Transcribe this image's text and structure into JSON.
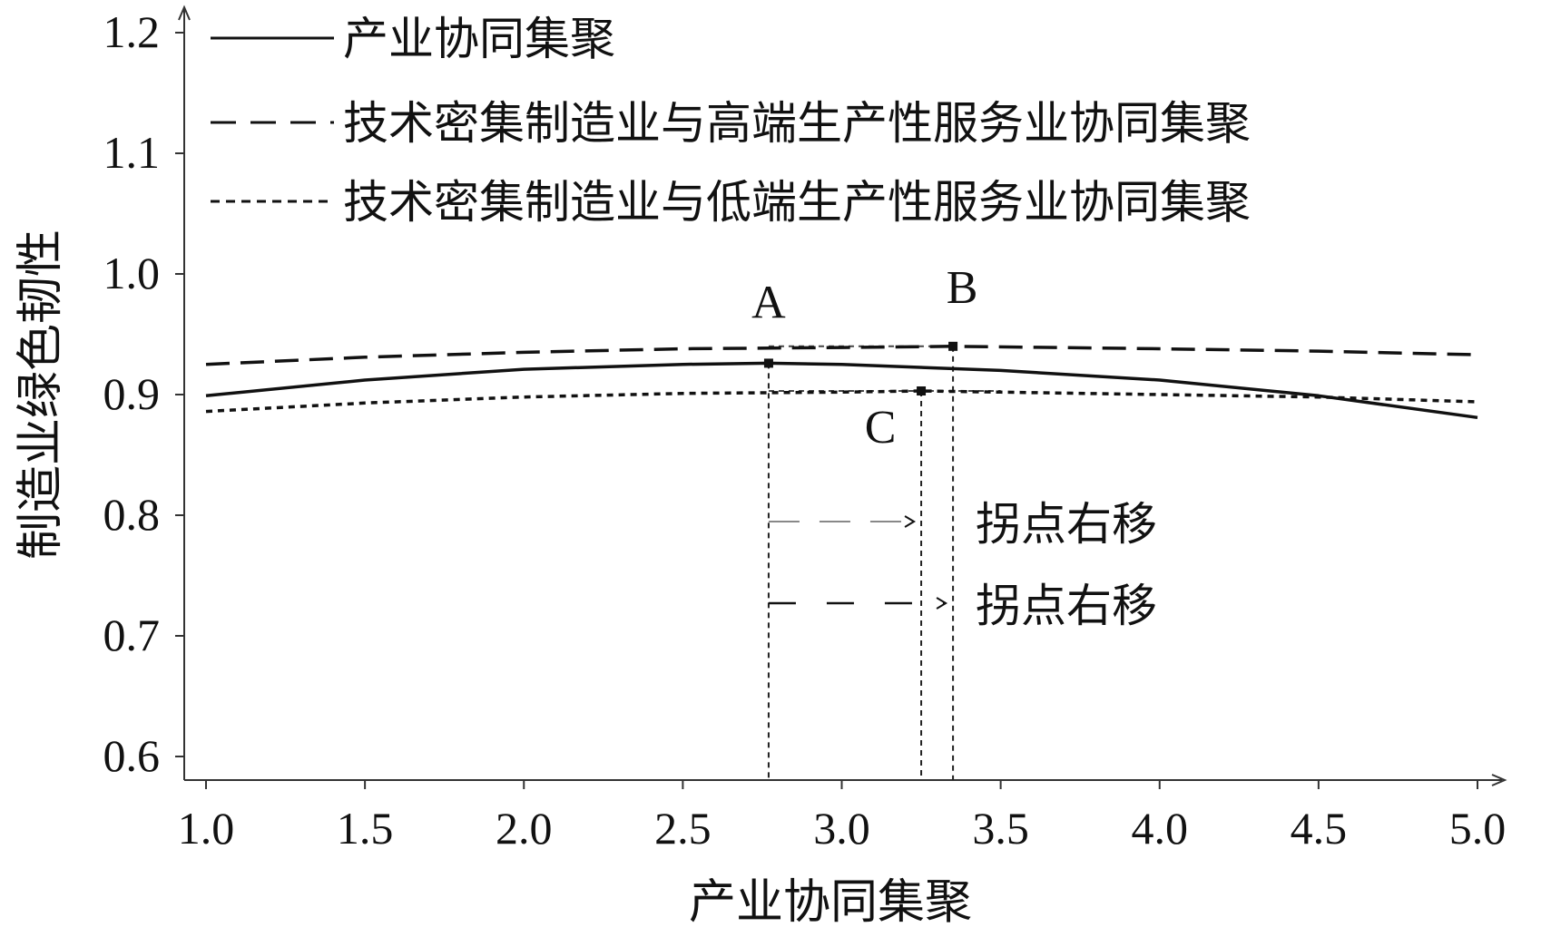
{
  "chart_data": {
    "type": "line",
    "xlabel": "产业协同集聚",
    "ylabel": "制造业绿色韧性",
    "xlim": [
      1.0,
      5.0
    ],
    "ylim": [
      0.6,
      1.2
    ],
    "x_ticks": [
      "1.0",
      "1.5",
      "2.0",
      "2.5",
      "3.0",
      "3.5",
      "4.0",
      "4.5",
      "5.0"
    ],
    "y_ticks": [
      "0.6",
      "0.7",
      "0.8",
      "0.9",
      "1.0",
      "1.1",
      "1.2"
    ],
    "grid": false,
    "legend_position": "top-left",
    "series": [
      {
        "name": "产业协同集聚",
        "style": "solid",
        "x": [
          1.0,
          1.5,
          2.0,
          2.5,
          2.77,
          3.0,
          3.5,
          4.0,
          4.5,
          5.0
        ],
        "y": [
          0.899,
          0.912,
          0.921,
          0.925,
          0.926,
          0.925,
          0.92,
          0.912,
          0.899,
          0.881
        ]
      },
      {
        "name": "技术密集制造业与高端生产性服务业协同集聚",
        "style": "dashed",
        "x": [
          1.0,
          1.5,
          2.0,
          2.5,
          3.0,
          3.35,
          4.0,
          4.5,
          5.0
        ],
        "y": [
          0.925,
          0.931,
          0.935,
          0.938,
          0.939,
          0.94,
          0.938,
          0.936,
          0.933
        ]
      },
      {
        "name": "技术密集制造业与低端生产性服务业协同集聚",
        "style": "dotted",
        "x": [
          1.0,
          1.5,
          2.0,
          2.5,
          3.0,
          3.25,
          3.5,
          4.0,
          4.5,
          5.0
        ],
        "y": [
          0.886,
          0.893,
          0.898,
          0.901,
          0.902,
          0.903,
          0.902,
          0.9,
          0.898,
          0.894
        ]
      }
    ],
    "points": [
      {
        "label": "A",
        "x": 2.77,
        "y": 0.926
      },
      {
        "label": "B",
        "x": 3.35,
        "y": 0.94
      },
      {
        "label": "C",
        "x": 3.25,
        "y": 0.903
      }
    ],
    "annotations": [
      {
        "text": "拐点右移",
        "from": "A",
        "to": "C",
        "style": "dashed-light"
      },
      {
        "text": "拐点右移",
        "from": "A",
        "to": "B",
        "style": "dashed-bold"
      }
    ]
  }
}
